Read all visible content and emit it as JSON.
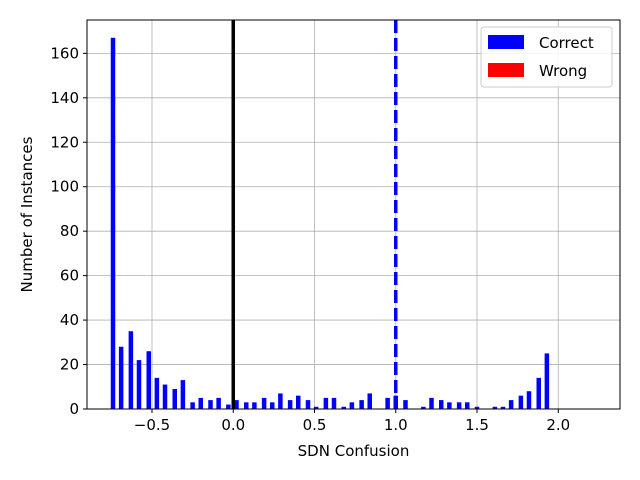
{
  "chart_data": {
    "type": "bar",
    "title": "",
    "xlabel": "SDN Confusion",
    "ylabel": "Number of Instances",
    "xlim": [
      -0.9,
      2.38
    ],
    "ylim": [
      0,
      175
    ],
    "xticks": [
      -0.5,
      0.0,
      0.5,
      1.0,
      1.5,
      2.0
    ],
    "xtick_labels": [
      "−0.5",
      "0.0",
      "0.5",
      "1.0",
      "1.5",
      "2.0"
    ],
    "yticks": [
      0,
      20,
      40,
      60,
      80,
      100,
      120,
      140,
      160
    ],
    "ytick_labels": [
      "0",
      "20",
      "40",
      "60",
      "80",
      "100",
      "120",
      "140",
      "160"
    ],
    "grid": true,
    "legend_position": "top-right",
    "series": [
      {
        "name": "Correct",
        "color": "#0000ff",
        "x": [
          -0.74,
          -0.69,
          -0.63,
          -0.58,
          -0.52,
          -0.47,
          -0.42,
          -0.36,
          -0.31,
          -0.25,
          -0.2,
          -0.14,
          -0.09,
          -0.03,
          0.02,
          0.08,
          0.13,
          0.19,
          0.24,
          0.29,
          0.35,
          0.4,
          0.46,
          0.51,
          0.57,
          0.62,
          0.68,
          0.73,
          0.79,
          0.84,
          0.9,
          0.95,
          1.0,
          1.06,
          1.11,
          1.17,
          1.22,
          1.28,
          1.33,
          1.39,
          1.44,
          1.5,
          1.55,
          1.61,
          1.66,
          1.71,
          1.77,
          1.82,
          1.88,
          1.93,
          1.99,
          2.04,
          2.1,
          2.15,
          2.21
        ],
        "values": [
          167,
          28,
          35,
          22,
          26,
          14,
          11,
          9,
          13,
          3,
          5,
          4,
          5,
          2,
          4,
          3,
          3,
          5,
          3,
          7,
          4,
          6,
          4,
          1,
          5,
          5,
          1,
          3,
          4,
          7,
          0,
          5,
          6,
          4,
          0,
          1,
          5,
          4,
          3,
          3,
          3,
          1,
          0,
          1,
          1,
          4,
          6,
          8,
          14,
          25,
          0,
          0,
          0,
          0,
          0
        ]
      },
      {
        "name": "Wrong",
        "color": "#ff0000",
        "x": [],
        "values": []
      }
    ],
    "reference_lines": [
      {
        "x": 0.0,
        "style": "solid",
        "color": "#000000"
      },
      {
        "x": 1.0,
        "style": "dashed",
        "color": "#0000ff"
      }
    ]
  }
}
